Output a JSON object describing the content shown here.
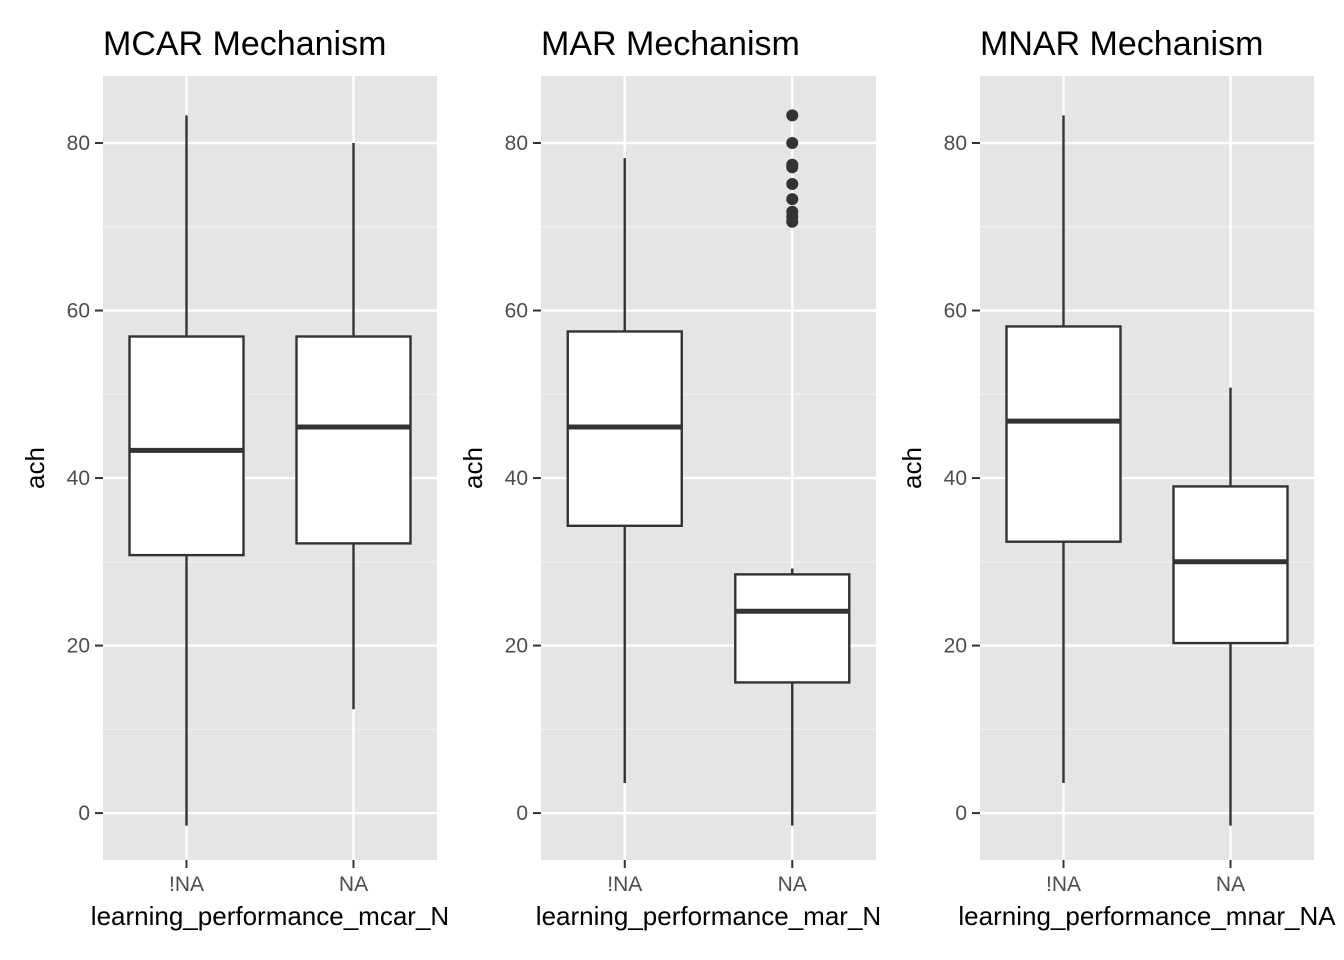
{
  "chart_data": [
    {
      "type": "box",
      "title": "MCAR Mechanism",
      "xlabel": "learning_performance_mcar_N",
      "ylabel": "ach",
      "categories": [
        "!NA",
        "NA"
      ],
      "yticks": [
        0,
        20,
        40,
        60,
        80
      ],
      "ylim": [
        -5.6,
        88
      ],
      "boxes": [
        {
          "category": "!NA",
          "whisker_low": -1.5,
          "q1": 30.8,
          "median": 43.3,
          "q3": 56.9,
          "whisker_high": 83.3,
          "outliers": []
        },
        {
          "category": "NA",
          "whisker_low": 12.4,
          "q1": 32.2,
          "median": 46.1,
          "q3": 56.9,
          "whisker_high": 80.0,
          "outliers": []
        }
      ]
    },
    {
      "type": "box",
      "title": "MAR Mechanism",
      "xlabel": "learning_performance_mar_N",
      "ylabel": "ach",
      "categories": [
        "!NA",
        "NA"
      ],
      "yticks": [
        0,
        20,
        40,
        60,
        80
      ],
      "ylim": [
        -5.6,
        88
      ],
      "boxes": [
        {
          "category": "!NA",
          "whisker_low": 3.6,
          "q1": 34.3,
          "median": 46.1,
          "q3": 57.5,
          "whisker_high": 78.2,
          "outliers": []
        },
        {
          "category": "NA",
          "whisker_low": -1.5,
          "q1": 15.6,
          "median": 24.1,
          "q3": 28.5,
          "whisker_high": 29.2,
          "outliers": [
            70.6,
            71.2,
            71.8,
            73.3,
            75.1,
            77.1,
            77.4,
            80.0,
            83.3
          ]
        }
      ]
    },
    {
      "type": "box",
      "title": "MNAR Mechanism",
      "xlabel": "learning_performance_mnar_NA",
      "ylabel": "ach",
      "categories": [
        "!NA",
        "NA"
      ],
      "yticks": [
        0,
        20,
        40,
        60,
        80
      ],
      "ylim": [
        -5.6,
        88
      ],
      "boxes": [
        {
          "category": "!NA",
          "whisker_low": 3.6,
          "q1": 32.4,
          "median": 46.8,
          "q3": 58.1,
          "whisker_high": 83.3,
          "outliers": []
        },
        {
          "category": "NA",
          "whisker_low": -1.5,
          "q1": 20.3,
          "median": 30.0,
          "q3": 39.0,
          "whisker_high": 50.8,
          "outliers": []
        }
      ]
    }
  ]
}
